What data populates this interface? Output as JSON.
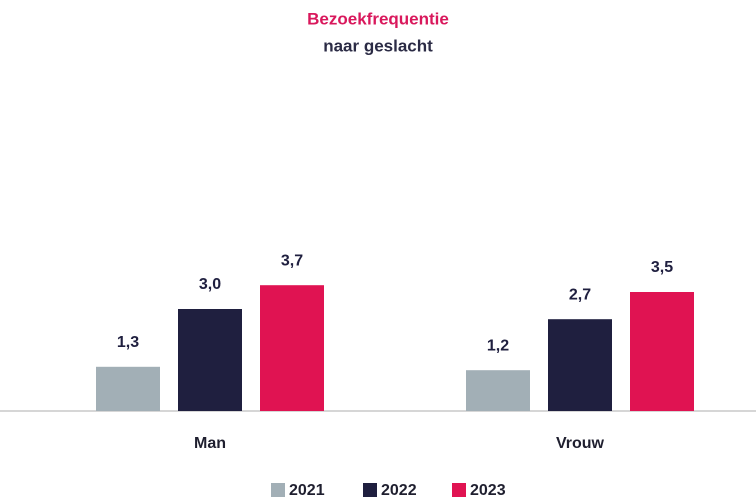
{
  "chart_data": {
    "type": "bar",
    "title": "Bezoekfrequentie",
    "subtitle": "naar geslacht",
    "categories": [
      "Man",
      "Vrouw"
    ],
    "series": [
      {
        "name": "2021",
        "color": "#a2afb6",
        "values": [
          1.3,
          1.2
        ],
        "value_labels": [
          "1,3",
          "1,2"
        ]
      },
      {
        "name": "2022",
        "color": "#1f1f3f",
        "values": [
          3.0,
          2.7
        ],
        "value_labels": [
          "3,0",
          "2,7"
        ]
      },
      {
        "name": "2023",
        "color": "#e01352",
        "values": [
          3.7,
          3.5
        ],
        "value_labels": [
          "3,7",
          "3,5"
        ]
      }
    ]
  }
}
